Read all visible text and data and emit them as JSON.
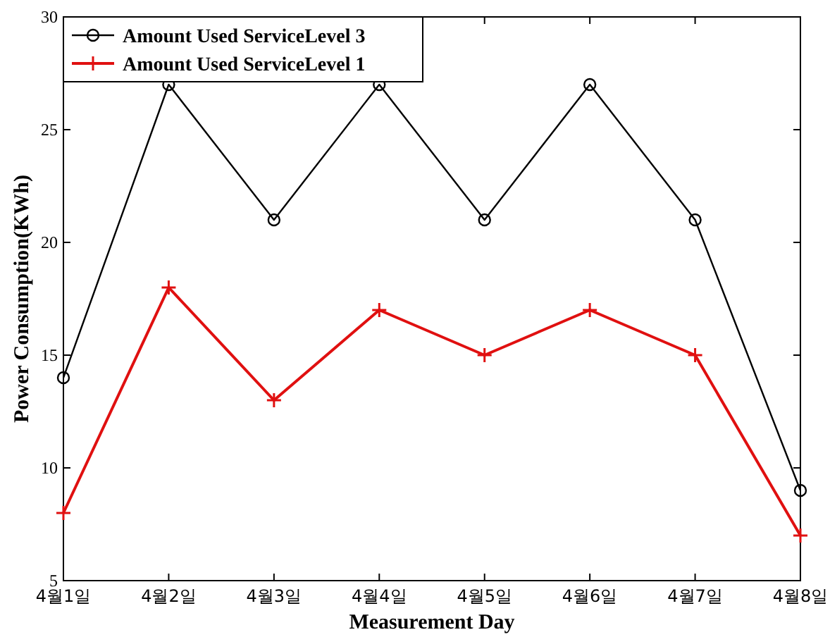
{
  "chart_data": {
    "type": "line",
    "xlabel": "Measurement Day",
    "ylabel": "Power Consumption(KWh)",
    "categories": [
      "4월1일",
      "4월2일",
      "4월3일",
      "4월4일",
      "4월5일",
      "4월6일",
      "4월7일",
      "4월8일"
    ],
    "ylim": [
      5,
      30
    ],
    "yticks": [
      5,
      10,
      15,
      20,
      25,
      30
    ],
    "grid": false,
    "legend": "top left",
    "series": [
      {
        "name": "Amount Used ServiceLevel 3",
        "color": "#000000",
        "marker": "circle",
        "values": [
          14,
          27,
          21,
          27,
          21,
          27,
          21,
          9
        ]
      },
      {
        "name": "Amount Used ServiceLevel 1",
        "color": "#e01010",
        "marker": "cross",
        "values": [
          8,
          18,
          13,
          17,
          15,
          17,
          15,
          7
        ]
      }
    ]
  }
}
